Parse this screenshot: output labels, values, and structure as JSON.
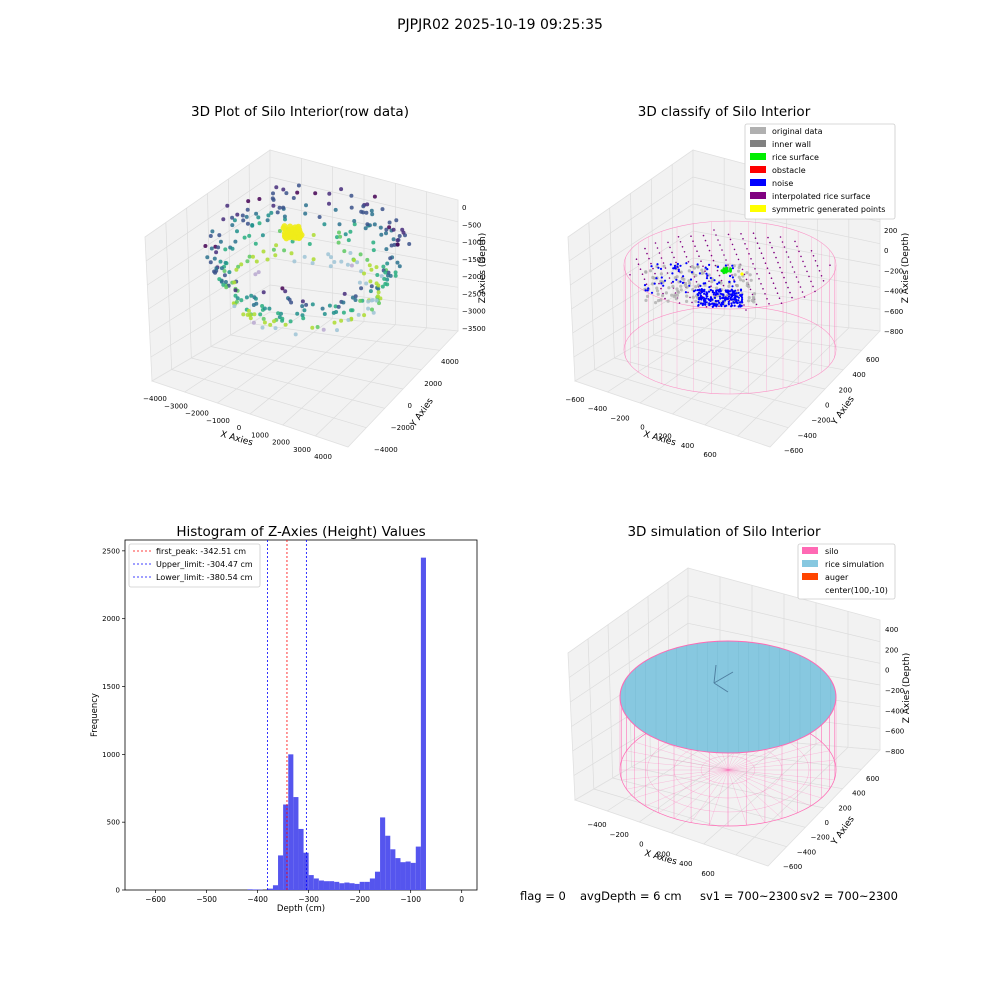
{
  "figure": {
    "suptitle": "PJPJR02 2025-10-19 09:25:35",
    "status": {
      "flag": "flag = 0",
      "avg_depth": "avgDepth = 6 cm",
      "sv1": "sv1 = 700~2300",
      "sv2": "sv2 = 700~2300"
    }
  },
  "colors": {
    "histogram_bar": "#5555ee",
    "first_peak_line": "#ff0000",
    "limit_lines": "#0000ff",
    "silo_wire": "#ff69b4",
    "rice_sim": "#87c8e0",
    "auger": "#ff4500",
    "noise": "#0000ff",
    "rice_surface": "#00ee00",
    "grey_data": "#aaaaaa",
    "purple_points": "#800080"
  },
  "chart_data": [
    {
      "type": "scatter3d",
      "title": "3D Plot of Silo Interior(row data)",
      "xlabel": "X Axies",
      "ylabel": "Y Axies",
      "zlabel": "Z Axies (Depth)",
      "x_ticks": [
        "−4000",
        "−3000",
        "−2000",
        "−1000",
        "0",
        "1000",
        "2000",
        "3000",
        "4000"
      ],
      "y_ticks": [
        "−4000",
        "−2000",
        "0",
        "2000",
        "4000"
      ],
      "z_ticks": [
        "0",
        "−500",
        "−1000",
        "−1500",
        "−2000",
        "−2500",
        "−3000",
        "−3500"
      ],
      "xlim": [
        -4000,
        4000
      ],
      "ylim": [
        -4000,
        4000
      ],
      "zlim": [
        -3800,
        0
      ],
      "colormap": "viridis"
    },
    {
      "type": "scatter3d",
      "title": "3D classify of Silo Interior",
      "xlabel": "X Axies",
      "ylabel": "Y Axies",
      "zlabel": "Z Axies (Depth)",
      "x_ticks": [
        "−600",
        "−400",
        "−200",
        "0",
        "200",
        "400",
        "600"
      ],
      "y_ticks": [
        "−600",
        "−400",
        "−200",
        "0",
        "200",
        "400",
        "600"
      ],
      "z_ticks": [
        "200",
        "0",
        "−200",
        "−400",
        "−600",
        "−800"
      ],
      "xlim": [
        -600,
        700
      ],
      "ylim": [
        -600,
        700
      ],
      "zlim": [
        -900,
        300
      ],
      "legend_position": "upper right",
      "legend": [
        {
          "label": "original data",
          "color": "#b0b0b0"
        },
        {
          "label": "inner wall",
          "color": "#808080"
        },
        {
          "label": "rice surface",
          "color": "#00ee00"
        },
        {
          "label": "obstacle",
          "color": "#ff0000"
        },
        {
          "label": "noise",
          "color": "#0000ff"
        },
        {
          "label": "interpolated rice surface",
          "color": "#800080"
        },
        {
          "label": "symmetric generated points",
          "color": "#ffff00"
        }
      ]
    },
    {
      "type": "bar",
      "title": "Histogram of Z-Axies (Height) Values",
      "xlabel": "Depth (cm)",
      "ylabel": "Frequency",
      "xlim": [
        -660,
        30
      ],
      "ylim": [
        0,
        2580
      ],
      "x_ticks": [
        -600,
        -500,
        -400,
        -300,
        -200,
        -100,
        0
      ],
      "y_ticks": [
        0,
        500,
        1000,
        1500,
        2000,
        2500
      ],
      "bin_width": 10,
      "bin_starts": [
        -420,
        -410,
        -400,
        -390,
        -380,
        -370,
        -360,
        -350,
        -340,
        -330,
        -320,
        -310,
        -300,
        -290,
        -280,
        -270,
        -260,
        -250,
        -240,
        -230,
        -220,
        -210,
        -200,
        -190,
        -180,
        -170,
        -160,
        -150,
        -140,
        -130,
        -120,
        -110,
        -100,
        -90,
        -80,
        -70,
        -60,
        -50,
        -40,
        -30,
        -20,
        -10
      ],
      "values": [
        5,
        4,
        3,
        0,
        10,
        35,
        255,
        630,
        1000,
        685,
        450,
        275,
        110,
        85,
        70,
        65,
        65,
        60,
        50,
        55,
        50,
        45,
        60,
        60,
        85,
        135,
        535,
        400,
        300,
        235,
        205,
        210,
        200,
        320,
        2450,
        0,
        0,
        0,
        0,
        0,
        0,
        0
      ],
      "legend_position": "upper left",
      "vlines": [
        {
          "label": "first_peak: -342.51 cm",
          "x": -342.51,
          "color": "#ff0000"
        },
        {
          "label": "Upper_limit: -304.47 cm",
          "x": -304.47,
          "color": "#0000ff"
        },
        {
          "label": "Lower_limit: -380.54 cm",
          "x": -380.54,
          "color": "#0000ff"
        }
      ]
    },
    {
      "type": "surface3d",
      "title": "3D simulation of Silo Interior",
      "xlabel": "X Axies",
      "ylabel": "Y Axies",
      "zlabel": "Z Axies (Depth)",
      "x_ticks": [
        "−400",
        "−200",
        "0",
        "200",
        "400",
        "600"
      ],
      "y_ticks": [
        "−600",
        "−400",
        "−200",
        "0",
        "200",
        "400",
        "600"
      ],
      "z_ticks": [
        "400",
        "200",
        "0",
        "−200",
        "−400",
        "−600",
        "−800"
      ],
      "legend_position": "upper right",
      "legend": [
        {
          "label": "silo",
          "color": "#ff69b4"
        },
        {
          "label": "rice simulation",
          "color": "#87c8e0"
        },
        {
          "label": "auger",
          "color": "#ff4500"
        },
        {
          "label": "center(100,-10)",
          "color": ""
        }
      ]
    }
  ]
}
